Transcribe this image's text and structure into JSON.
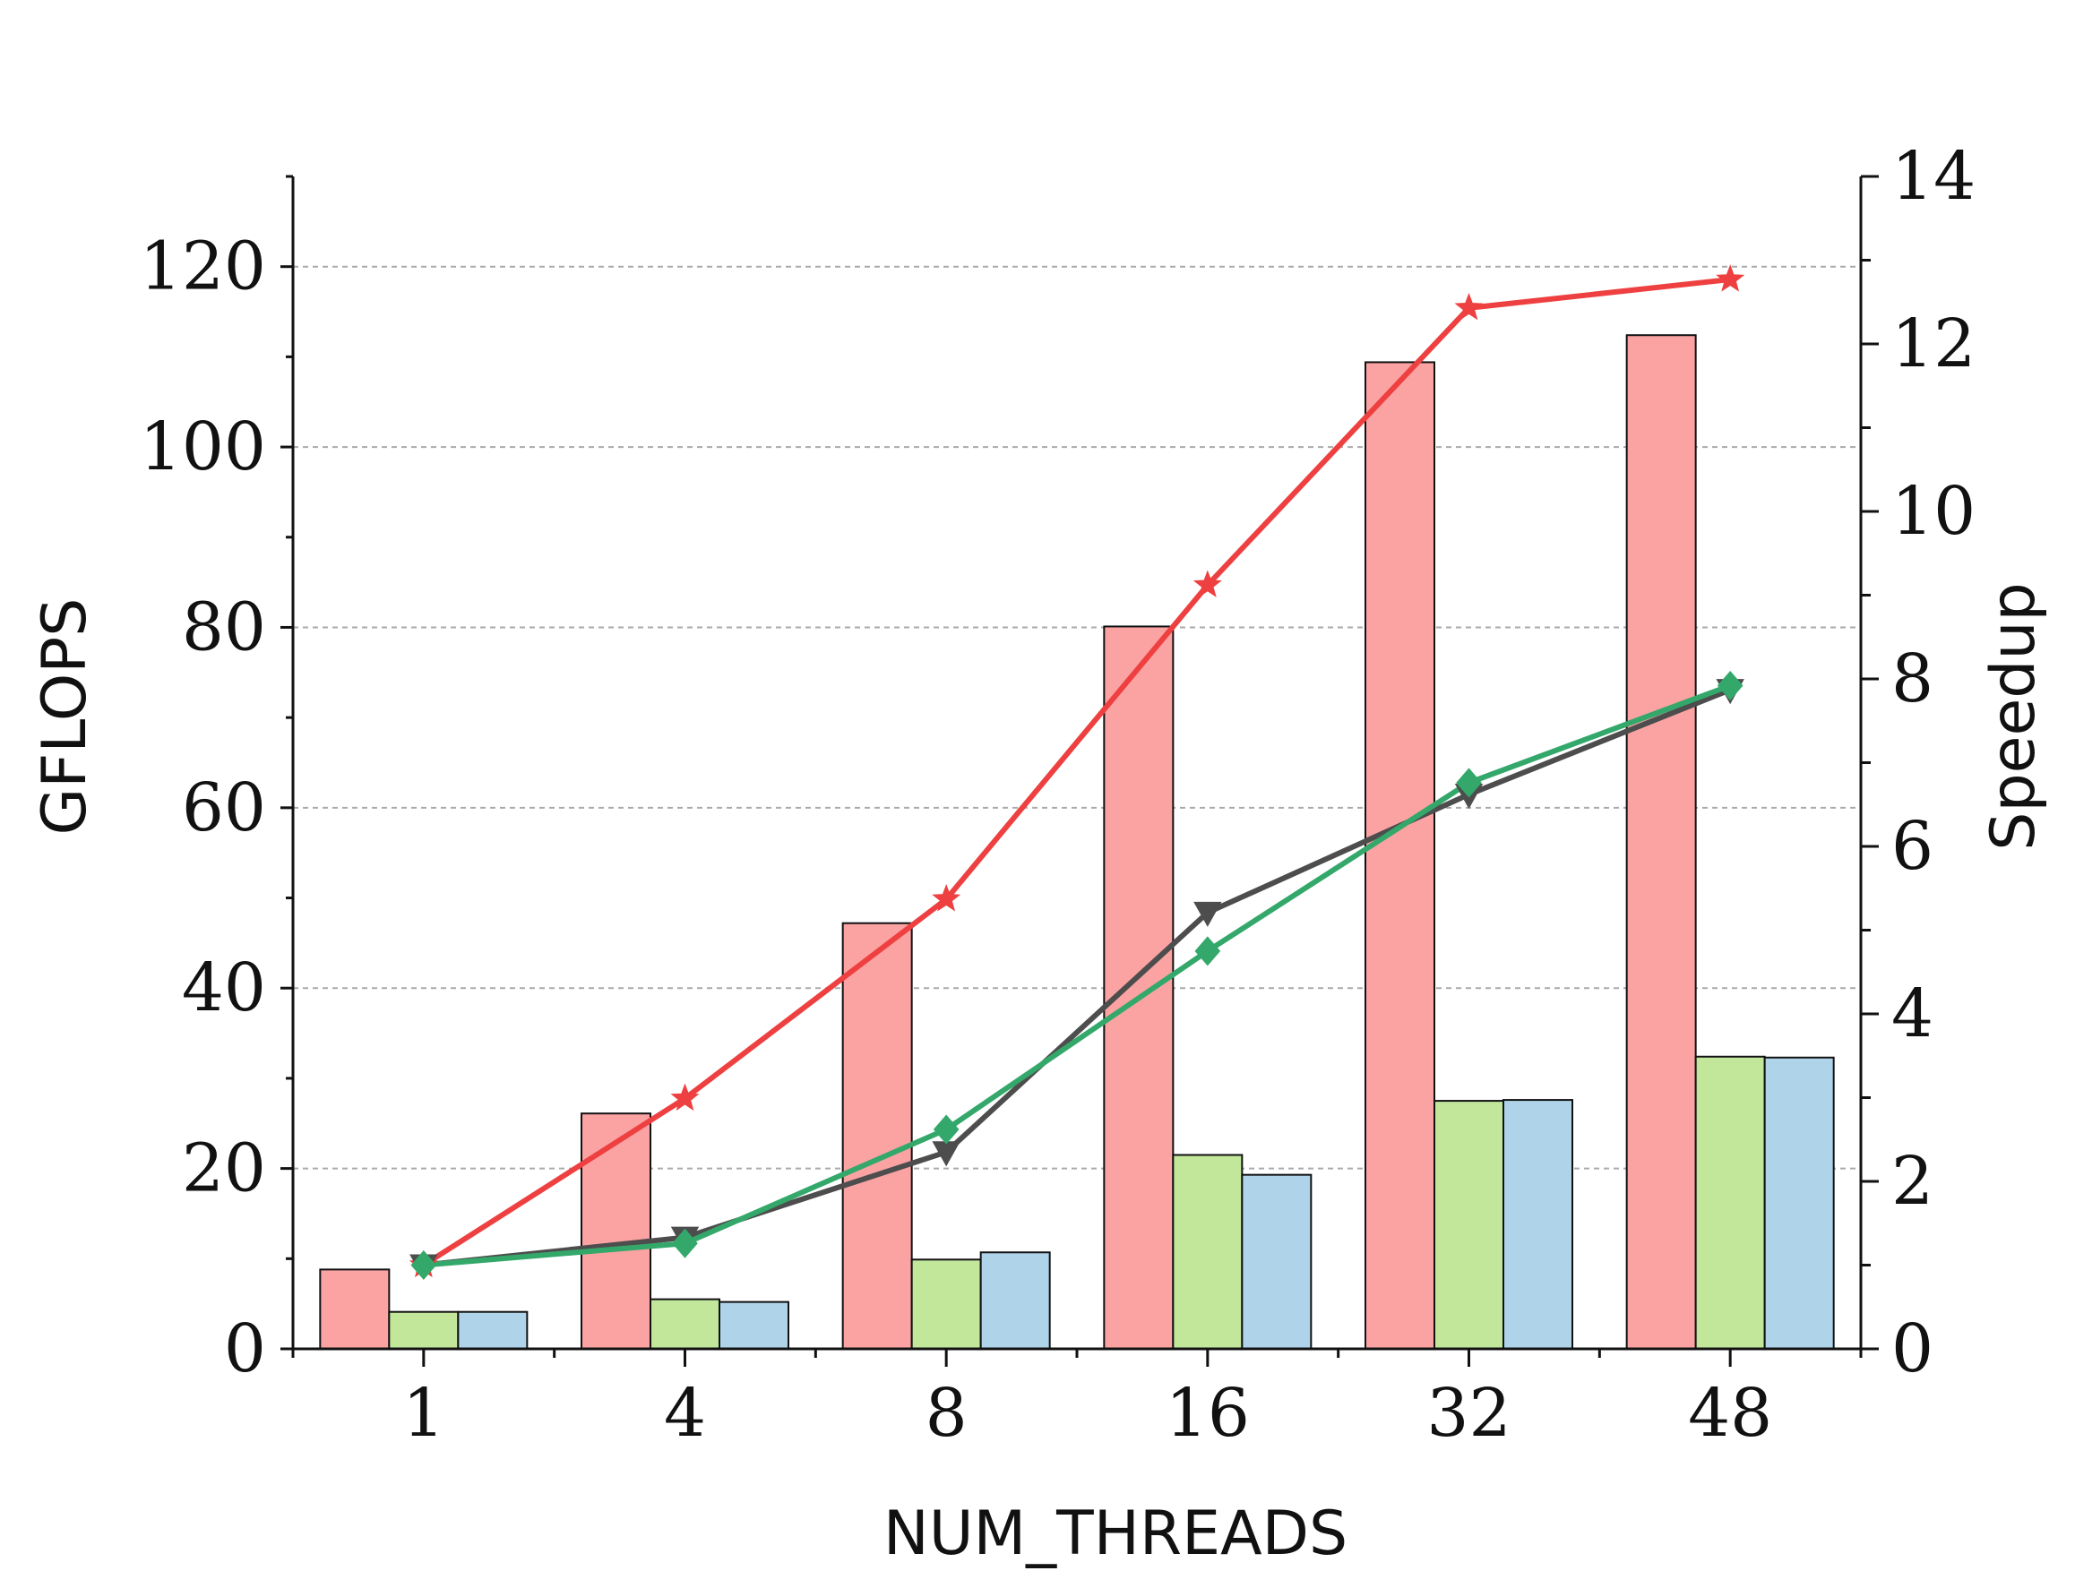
{
  "chart_data": {
    "type": "bar",
    "xlabel": "NUM_THREADS",
    "ylabel": "GFLOPS",
    "y2label": "Speedup",
    "categories": [
      "1",
      "4",
      "8",
      "16",
      "32",
      "48"
    ],
    "ylim": [
      0,
      130
    ],
    "y2lim": [
      0,
      14
    ],
    "yticks": [
      0,
      20,
      40,
      60,
      80,
      100,
      120
    ],
    "y2ticks": [
      0,
      2,
      4,
      6,
      8,
      10,
      12,
      14
    ],
    "grid": "horizontal dashed",
    "bar_series": [
      {
        "color": "#fba3a3",
        "values": [
          8.8,
          26.1,
          47.2,
          80.1,
          109.4,
          112.4
        ]
      },
      {
        "color": "#c2e79b",
        "values": [
          4.1,
          5.5,
          9.9,
          21.5,
          27.5,
          32.4
        ]
      },
      {
        "color": "#afd4ea",
        "values": [
          4.1,
          5.2,
          10.7,
          19.3,
          27.6,
          32.3
        ]
      }
    ],
    "line_series": [
      {
        "color": "#ee4040",
        "marker": "star",
        "values": [
          1.0,
          2.99,
          5.37,
          9.12,
          12.43,
          12.77
        ]
      },
      {
        "color": "#4d4d4d",
        "marker": "triangle-down",
        "values": [
          1.0,
          1.33,
          2.35,
          5.21,
          6.62,
          7.87
        ]
      },
      {
        "color": "#33a86a",
        "marker": "diamond",
        "values": [
          1.0,
          1.26,
          2.62,
          4.75,
          6.76,
          7.92
        ]
      }
    ]
  }
}
